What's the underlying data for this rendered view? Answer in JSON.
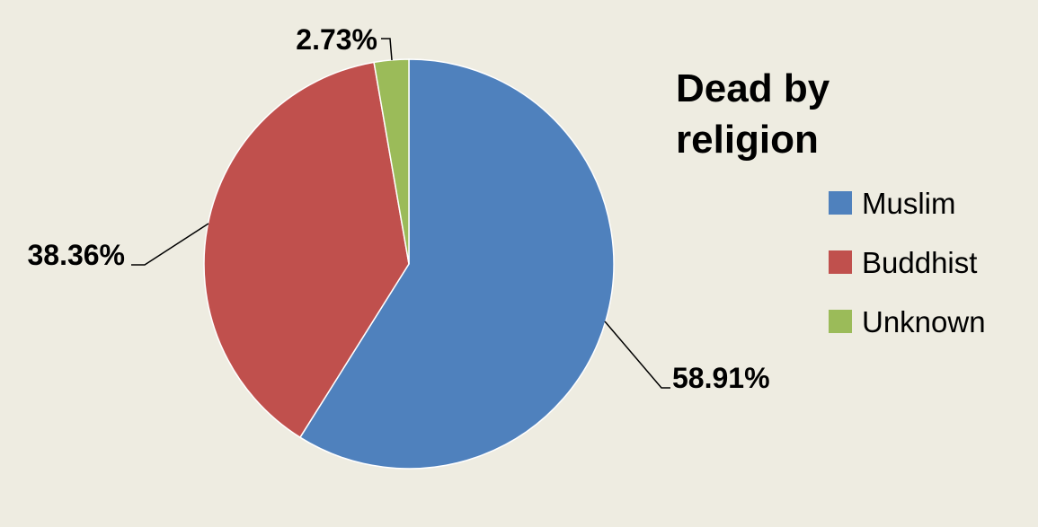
{
  "chart_data": {
    "type": "pie",
    "title_lines": [
      "Dead by",
      "religion"
    ],
    "categories": [
      "Muslim",
      "Buddhist",
      "Unknown"
    ],
    "values": [
      58.91,
      38.36,
      2.73
    ],
    "data_labels": [
      "58.91%",
      "38.36%",
      "2.73%"
    ],
    "colors": [
      "#4F81BD",
      "#C0504D",
      "#9BBB59"
    ],
    "legend_position": "right",
    "start_angle": "12 o'clock",
    "direction": "clockwise"
  },
  "style": {
    "background": "#EEECE1",
    "text_color": "#000000",
    "slice_border": "#FFFFFF",
    "leader_color": "#000000"
  }
}
